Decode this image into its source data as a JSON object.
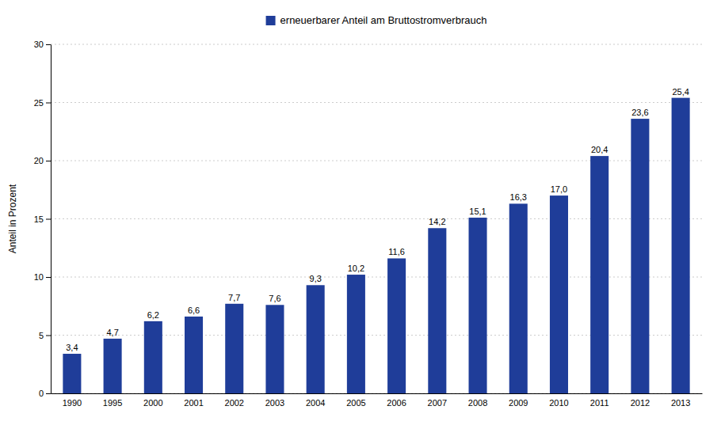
{
  "chart_data": {
    "type": "bar",
    "ylabel": "Anteil in Prozent",
    "categories": [
      "1990",
      "1995",
      "2000",
      "2001",
      "2002",
      "2003",
      "2004",
      "2005",
      "2006",
      "2007",
      "2008",
      "2009",
      "2010",
      "2011",
      "2012",
      "2013"
    ],
    "series": [
      {
        "name": "erneuerbarer Anteil am Bruttostromverbrauch",
        "color": "#1f3d99",
        "values": [
          3.4,
          4.7,
          6.2,
          6.6,
          7.7,
          7.6,
          9.3,
          10.2,
          11.6,
          14.2,
          15.1,
          16.3,
          17.0,
          20.4,
          23.6,
          25.4
        ],
        "value_labels": [
          "3,4",
          "4,7",
          "6,2",
          "6,6",
          "7,7",
          "7,6",
          "9,3",
          "10,2",
          "11,6",
          "14,2",
          "15,1",
          "16,3",
          "17,0",
          "20,4",
          "23,6",
          "25,4"
        ]
      }
    ],
    "ylim": [
      0,
      30
    ],
    "yticks": [
      0,
      5,
      10,
      15,
      20,
      25,
      30
    ],
    "grid": true,
    "legend": "top",
    "data_labels": true
  }
}
